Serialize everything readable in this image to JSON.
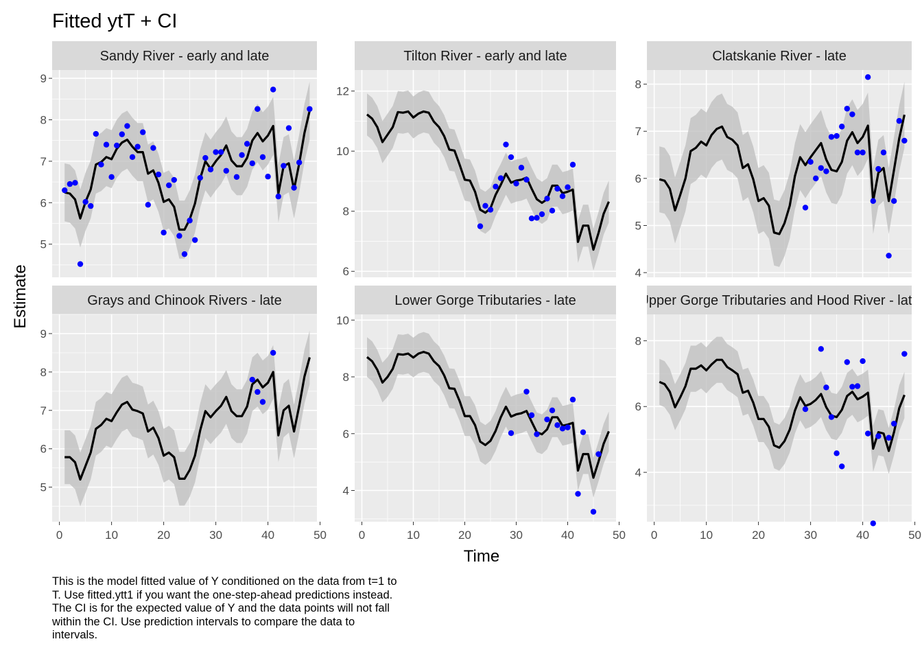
{
  "title": "Fitted ytT + CI",
  "caption": [
    "This is the model fitted value of Y conditioned on the data from t=1 to",
    "T. Use fitted.ytt1 if you want the one-step-ahead predictions instead.",
    "The CI is for the expected value of Y and the data points will not fall",
    "within the CI. Use prediction intervals to compare the data to",
    "intervals."
  ],
  "colors": {
    "panel_bg": "#EBEBEB",
    "strip_bg": "#D9D9D9",
    "grid": "#FFFFFF",
    "ribbon": "#BEBEBE",
    "line": "#000000",
    "points": "#0000FF"
  },
  "chart_data": {
    "type": "line",
    "xlabel": "Time",
    "ylabel": "Estimate",
    "xlim": [
      0,
      50
    ],
    "x_ticks": [
      "0",
      "10",
      "20",
      "30",
      "40",
      "50"
    ],
    "ci_halfwidth": 0.7,
    "facets": [
      {
        "strip": "Sandy River - early and late",
        "ylim": [
          4.2,
          9.2
        ],
        "y_ticks": [
          "5",
          "6",
          "7",
          "8",
          "9"
        ],
        "fitted": [
          6.25,
          6.22,
          6.08,
          5.62,
          6.02,
          6.32,
          6.92,
          6.98,
          7.1,
          7.05,
          7.3,
          7.45,
          7.52,
          7.35,
          7.22,
          7.22,
          6.7,
          6.78,
          6.48,
          6.02,
          6.08,
          5.9,
          5.35,
          5.35,
          5.6,
          5.98,
          6.58,
          7.0,
          6.82,
          7.0,
          7.15,
          7.38,
          7.02,
          6.88,
          6.88,
          7.08,
          7.5,
          7.68,
          7.48,
          7.62,
          7.85,
          6.22,
          6.88,
          6.95,
          6.32,
          6.95,
          7.68,
          8.22
        ],
        "points": [
          [
            1,
            6.3
          ],
          [
            2,
            6.45
          ],
          [
            3,
            6.48
          ],
          [
            4,
            4.52
          ],
          [
            5,
            6.02
          ],
          [
            6,
            5.92
          ],
          [
            7,
            7.66
          ],
          [
            8,
            6.92
          ],
          [
            9,
            7.4
          ],
          [
            10,
            6.62
          ],
          [
            11,
            7.38
          ],
          [
            12,
            7.65
          ],
          [
            13,
            7.85
          ],
          [
            14,
            7.1
          ],
          [
            15,
            7.35
          ],
          [
            16,
            7.7
          ],
          [
            17,
            5.95
          ],
          [
            18,
            7.32
          ],
          [
            19,
            6.68
          ],
          [
            20,
            5.28
          ],
          [
            21,
            6.42
          ],
          [
            22,
            6.55
          ],
          [
            23,
            5.2
          ],
          [
            24,
            4.76
          ],
          [
            25,
            5.57
          ],
          [
            26,
            5.1
          ],
          [
            27,
            6.6
          ],
          [
            28,
            7.08
          ],
          [
            29,
            6.8
          ],
          [
            30,
            7.22
          ],
          [
            31,
            7.22
          ],
          [
            32,
            6.77
          ],
          [
            34,
            6.62
          ],
          [
            35,
            7.15
          ],
          [
            36,
            7.42
          ],
          [
            37,
            6.95
          ],
          [
            38,
            8.26
          ],
          [
            39,
            7.1
          ],
          [
            40,
            6.63
          ],
          [
            41,
            8.73
          ],
          [
            42,
            6.15
          ],
          [
            43,
            6.89
          ],
          [
            44,
            7.8
          ],
          [
            45,
            6.36
          ],
          [
            46,
            6.97
          ],
          [
            48,
            8.26
          ]
        ]
      },
      {
        "strip": "Tilton River - early and late",
        "ylim": [
          5.8,
          12.7
        ],
        "y_ticks": [
          "6",
          "8",
          "10",
          "12"
        ],
        "fitted": [
          11.22,
          11.08,
          10.8,
          10.3,
          10.55,
          10.8,
          11.3,
          11.28,
          11.32,
          11.12,
          11.25,
          11.32,
          11.28,
          10.98,
          10.8,
          10.5,
          10.05,
          10.02,
          9.55,
          9.05,
          9.02,
          8.65,
          8.05,
          7.95,
          8.1,
          8.55,
          8.88,
          9.25,
          8.95,
          9.02,
          9.05,
          9.12,
          8.75,
          8.4,
          8.28,
          8.4,
          8.85,
          8.85,
          8.6,
          8.65,
          8.72,
          6.98,
          7.52,
          7.52,
          6.72,
          7.28,
          7.92,
          8.32
        ],
        "points": [
          [
            23,
            7.5
          ],
          [
            24,
            8.18
          ],
          [
            25,
            8.05
          ],
          [
            26,
            8.82
          ],
          [
            27,
            9.1
          ],
          [
            28,
            10.22
          ],
          [
            29,
            9.8
          ],
          [
            30,
            8.92
          ],
          [
            31,
            9.45
          ],
          [
            32,
            9.05
          ],
          [
            33,
            7.76
          ],
          [
            34,
            7.78
          ],
          [
            35,
            7.9
          ],
          [
            36,
            8.42
          ],
          [
            37,
            8.02
          ],
          [
            38,
            8.75
          ],
          [
            39,
            8.5
          ],
          [
            40,
            8.8
          ],
          [
            41,
            9.55
          ]
        ]
      },
      {
        "strip": "Clatskanie River - late",
        "ylim": [
          3.9,
          8.3
        ],
        "y_ticks": [
          "4",
          "5",
          "6",
          "7",
          "8"
        ],
        "fitted": [
          5.98,
          5.95,
          5.78,
          5.32,
          5.65,
          6.0,
          6.58,
          6.65,
          6.78,
          6.7,
          6.92,
          7.05,
          7.1,
          6.88,
          6.82,
          6.7,
          6.22,
          6.3,
          5.98,
          5.52,
          5.58,
          5.42,
          4.85,
          4.82,
          5.05,
          5.42,
          6.05,
          6.45,
          6.28,
          6.45,
          6.6,
          6.75,
          6.4,
          6.18,
          6.15,
          6.35,
          6.8,
          6.98,
          6.75,
          6.88,
          7.12,
          5.52,
          6.12,
          6.22,
          5.52,
          6.18,
          6.85,
          7.35
        ],
        "points": [
          [
            29,
            5.38
          ],
          [
            30,
            6.35
          ],
          [
            31,
            6.0
          ],
          [
            32,
            6.22
          ],
          [
            33,
            6.15
          ],
          [
            34,
            6.88
          ],
          [
            35,
            6.9
          ],
          [
            36,
            7.1
          ],
          [
            37,
            7.48
          ],
          [
            38,
            7.36
          ],
          [
            39,
            6.55
          ],
          [
            40,
            6.55
          ],
          [
            41,
            8.15
          ],
          [
            42,
            5.52
          ],
          [
            43,
            6.2
          ],
          [
            44,
            6.55
          ],
          [
            45,
            4.36
          ],
          [
            46,
            5.52
          ],
          [
            47,
            7.22
          ],
          [
            48,
            6.8
          ]
        ]
      },
      {
        "strip": "Grays and Chinook Rivers - late",
        "ylim": [
          4.1,
          9.5
        ],
        "y_ticks": [
          "5",
          "6",
          "7",
          "8",
          "9"
        ],
        "fitted": [
          5.78,
          5.78,
          5.65,
          5.2,
          5.55,
          5.9,
          6.52,
          6.62,
          6.78,
          6.72,
          6.95,
          7.15,
          7.22,
          7.02,
          6.98,
          6.92,
          6.45,
          6.55,
          6.28,
          5.82,
          5.9,
          5.78,
          5.22,
          5.22,
          5.45,
          5.82,
          6.48,
          6.98,
          6.82,
          6.98,
          7.12,
          7.35,
          6.98,
          6.85,
          6.85,
          7.1,
          7.68,
          7.8,
          7.6,
          7.72,
          8.0,
          6.35,
          7.0,
          7.12,
          6.45,
          7.12,
          7.88,
          8.38
        ],
        "points": [
          [
            37,
            7.8
          ],
          [
            38,
            7.48
          ],
          [
            39,
            7.22
          ],
          [
            41,
            8.5
          ]
        ]
      },
      {
        "strip": "Lower Gorge Tributaries - late",
        "ylim": [
          2.9,
          10.2
        ],
        "y_ticks": [
          "4",
          "6",
          "8",
          "10"
        ],
        "fitted": [
          8.7,
          8.55,
          8.25,
          7.8,
          8.0,
          8.28,
          8.8,
          8.78,
          8.82,
          8.68,
          8.82,
          8.88,
          8.82,
          8.55,
          8.38,
          8.05,
          7.6,
          7.58,
          7.15,
          6.62,
          6.62,
          6.3,
          5.72,
          5.6,
          5.75,
          6.1,
          6.58,
          6.95,
          6.6,
          6.68,
          6.72,
          6.8,
          6.42,
          6.05,
          5.98,
          6.15,
          6.58,
          6.58,
          6.28,
          6.32,
          6.38,
          4.7,
          5.28,
          5.28,
          4.45,
          5.02,
          5.65,
          6.08
        ],
        "points": [
          [
            29,
            6.02
          ],
          [
            32,
            7.48
          ],
          [
            33,
            6.65
          ],
          [
            34,
            5.98
          ],
          [
            36,
            6.5
          ],
          [
            37,
            6.82
          ],
          [
            38,
            6.3
          ],
          [
            39,
            6.18
          ],
          [
            40,
            6.22
          ],
          [
            41,
            7.2
          ],
          [
            42,
            3.88
          ],
          [
            43,
            6.05
          ],
          [
            45,
            3.25
          ],
          [
            46,
            5.28
          ]
        ]
      },
      {
        "strip": "Upper Gorge Tributaries and Hood River - late",
        "ylim": [
          2.5,
          8.8
        ],
        "y_ticks": [
          "4",
          "6",
          "8"
        ],
        "fitted": [
          6.75,
          6.68,
          6.45,
          5.98,
          6.28,
          6.62,
          7.15,
          7.15,
          7.25,
          7.1,
          7.28,
          7.42,
          7.42,
          7.2,
          7.1,
          6.98,
          6.42,
          6.48,
          6.12,
          5.62,
          5.62,
          5.38,
          4.82,
          4.75,
          4.95,
          5.3,
          5.88,
          6.28,
          6.02,
          6.08,
          6.2,
          6.38,
          5.98,
          5.72,
          5.68,
          5.9,
          6.32,
          6.45,
          6.22,
          6.3,
          6.42,
          4.72,
          5.22,
          5.18,
          4.65,
          5.22,
          5.95,
          6.35
        ],
        "points": [
          [
            29,
            5.92
          ],
          [
            32,
            7.75
          ],
          [
            33,
            6.58
          ],
          [
            34,
            5.68
          ],
          [
            35,
            4.58
          ],
          [
            36,
            4.18
          ],
          [
            37,
            7.35
          ],
          [
            38,
            6.6
          ],
          [
            39,
            6.62
          ],
          [
            40,
            7.38
          ],
          [
            41,
            5.18
          ],
          [
            42,
            2.45
          ],
          [
            43,
            5.1
          ],
          [
            45,
            5.05
          ],
          [
            46,
            5.48
          ],
          [
            48,
            7.6
          ]
        ]
      }
    ]
  }
}
